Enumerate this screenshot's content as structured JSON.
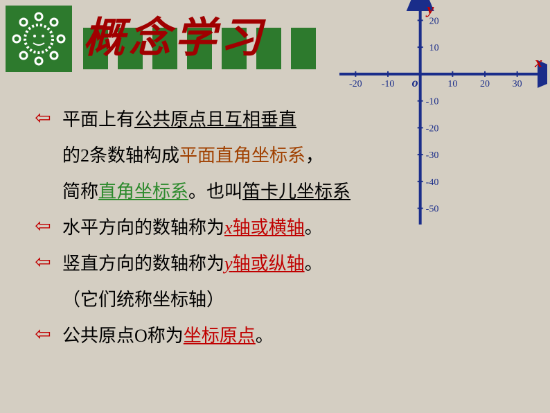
{
  "title": "概念学习",
  "logo": {
    "bg_color": "#2d7a2d",
    "fg_color": "#ffffff"
  },
  "bars": {
    "count": 7,
    "color": "#2d7a2d"
  },
  "chart": {
    "axis_color": "#1a2d8a",
    "x_label": "x",
    "y_label": "y",
    "x_label_color": "#c00000",
    "y_label_color": "#c00000",
    "origin_label": "o",
    "origin_color": "#1a2d8a",
    "x_ticks": [
      {
        "v": -20,
        "label": "-20"
      },
      {
        "v": -10,
        "label": "-10"
      },
      {
        "v": 10,
        "label": "10"
      },
      {
        "v": 20,
        "label": "20"
      },
      {
        "v": 30,
        "label": "30"
      }
    ],
    "y_ticks": [
      {
        "v": 20,
        "label": "20"
      },
      {
        "v": 10,
        "label": "10"
      },
      {
        "v": -10,
        "label": "-10"
      },
      {
        "v": -20,
        "label": "-20"
      },
      {
        "v": -30,
        "label": "-30"
      },
      {
        "v": -40,
        "label": "-40"
      },
      {
        "v": -50,
        "label": "-50"
      }
    ],
    "x_range": [
      -25,
      35
    ],
    "y_range": [
      -55,
      25
    ],
    "tick_fontsize": 14,
    "label_fontsize": 22,
    "axis_width": 4
  },
  "bullets": [
    {
      "lines": [
        [
          {
            "t": "平面上有",
            "cls": ""
          },
          {
            "t": "公共原点且互相垂直",
            "cls": "ul"
          }
        ],
        [
          {
            "t": "的2条数轴构成",
            "cls": ""
          },
          {
            "t": "平面直角坐标系",
            "cls": "brown"
          },
          {
            "t": "，",
            "cls": ""
          }
        ],
        [
          {
            "t": "简称",
            "cls": ""
          },
          {
            "t": "直角坐标系",
            "cls": "green ul"
          },
          {
            "t": "。也叫",
            "cls": ""
          },
          {
            "t": "笛卡儿坐标系",
            "cls": "ul"
          }
        ]
      ]
    },
    {
      "lines": [
        [
          {
            "t": "水平方向的数轴称为",
            "cls": ""
          },
          {
            "t": "x",
            "cls": "red ul",
            "italic": true
          },
          {
            "t": "轴或横轴",
            "cls": "red ul"
          },
          {
            "t": "。",
            "cls": ""
          }
        ]
      ]
    },
    {
      "lines": [
        [
          {
            "t": "竖直方向的数轴称为",
            "cls": ""
          },
          {
            "t": "y",
            "cls": "red ul",
            "italic": true
          },
          {
            "t": "轴或纵轴",
            "cls": "red ul"
          },
          {
            "t": "。",
            "cls": ""
          }
        ],
        [
          {
            "t": "（它们统称坐标轴）",
            "cls": ""
          }
        ]
      ]
    },
    {
      "lines": [
        [
          {
            "t": "公共原点O称为",
            "cls": ""
          },
          {
            "t": "坐标原点",
            "cls": "red ul"
          },
          {
            "t": "。",
            "cls": ""
          }
        ]
      ]
    }
  ],
  "arrow_glyph": "⇦"
}
